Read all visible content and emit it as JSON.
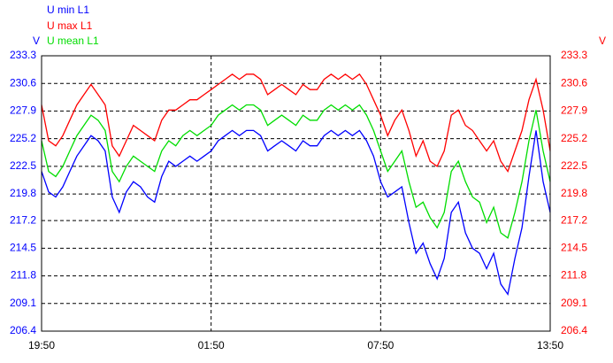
{
  "chart_data": {
    "type": "line",
    "y_label": "V",
    "y2_label": "V",
    "categories": [
      "19:50",
      null,
      null,
      null,
      null,
      null,
      null,
      null,
      null,
      null,
      null,
      null,
      null,
      null,
      null,
      null,
      null,
      null,
      null,
      null,
      null,
      null,
      null,
      null,
      "01:50",
      null,
      null,
      null,
      null,
      null,
      null,
      null,
      null,
      null,
      null,
      null,
      null,
      null,
      null,
      null,
      null,
      null,
      null,
      null,
      null,
      null,
      null,
      null,
      "07:50",
      null,
      null,
      null,
      null,
      null,
      null,
      null,
      null,
      null,
      null,
      null,
      null,
      null,
      null,
      null,
      null,
      null,
      null,
      null,
      null,
      null,
      null,
      null,
      "13:50"
    ],
    "series": [
      {
        "name": "U min L1",
        "color": "#0000ff",
        "values": [
          222,
          220,
          219.5,
          220.5,
          222,
          223.5,
          224.5,
          225.5,
          225,
          224,
          219.5,
          218,
          220,
          221,
          220.5,
          219.5,
          219,
          221.5,
          223,
          222.5,
          223,
          223.5,
          223,
          223.5,
          224,
          225,
          225.5,
          226,
          225.5,
          226,
          226,
          225.5,
          224,
          224.5,
          225,
          224.5,
          224,
          225,
          224.5,
          224.5,
          225.5,
          226,
          225.5,
          226,
          225.5,
          226,
          225,
          223.5,
          221,
          219.5,
          220,
          220.5,
          217,
          214,
          215,
          213,
          211.5,
          213.5,
          218,
          219,
          216,
          214.5,
          214,
          212.5,
          214,
          211,
          210,
          213.5,
          216.5,
          221.5,
          226,
          221,
          218
        ]
      },
      {
        "name": "U max L1",
        "color": "#ff0000",
        "values": [
          228.5,
          225,
          224.5,
          225.5,
          227,
          228.5,
          229.5,
          230.5,
          229.5,
          228.5,
          224.5,
          223.5,
          225,
          226.5,
          226,
          225.5,
          225,
          227,
          228,
          228,
          228.5,
          229,
          229,
          229.5,
          230,
          230.5,
          231,
          231.5,
          231,
          231.5,
          231.5,
          231,
          229.5,
          230,
          230.5,
          230,
          229.5,
          230.5,
          230,
          230,
          231,
          231.5,
          231,
          231.5,
          231,
          231.5,
          230.5,
          229,
          227.5,
          225.5,
          227,
          228,
          226,
          223.5,
          225,
          223,
          222.5,
          224,
          227.5,
          228,
          226.5,
          226,
          225,
          224,
          225,
          223,
          222,
          224,
          226,
          229,
          231,
          228,
          224
        ]
      },
      {
        "name": "U mean L1",
        "color": "#00dd00",
        "values": [
          225,
          222,
          221.5,
          222.5,
          224,
          225.5,
          226.5,
          227.5,
          227,
          226,
          222,
          221,
          222.5,
          223.5,
          223,
          222.5,
          222,
          224,
          225,
          224.5,
          225.5,
          226,
          225.5,
          226,
          226.5,
          227.5,
          228,
          228.5,
          228,
          228.5,
          228.5,
          228,
          226.5,
          227,
          227.5,
          227,
          226.5,
          227.5,
          227,
          227,
          228,
          228.5,
          228,
          228.5,
          228,
          228.5,
          227.5,
          226,
          224,
          222,
          223,
          224,
          221,
          218.5,
          219,
          217.5,
          216.5,
          218,
          222,
          223,
          221,
          219.5,
          219,
          217,
          218.5,
          216,
          215.5,
          218,
          221,
          225,
          228,
          224,
          221
        ]
      }
    ],
    "ylim": [
      206.4,
      233.3
    ],
    "yticks": [
      206.4,
      209.1,
      211.8,
      214.5,
      217.2,
      219.8,
      222.5,
      225.2,
      227.9,
      230.6,
      233.3
    ],
    "y2lim": [
      206.4,
      233.3
    ],
    "y2ticks": [
      206.4,
      209.1,
      211.8,
      214.5,
      217.2,
      219.8,
      222.5,
      225.2,
      227.9,
      230.6,
      233.3
    ],
    "y_color": "#0000ff",
    "y2_color": "#ff0000",
    "grid": true
  }
}
